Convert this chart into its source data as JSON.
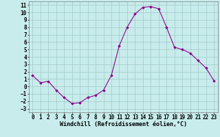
{
  "x": [
    0,
    1,
    2,
    3,
    4,
    5,
    6,
    7,
    8,
    9,
    10,
    11,
    12,
    13,
    14,
    15,
    16,
    17,
    18,
    19,
    20,
    21,
    22,
    23
  ],
  "y": [
    1.5,
    0.5,
    0.7,
    -0.5,
    -1.5,
    -2.3,
    -2.2,
    -1.5,
    -1.2,
    -0.5,
    1.5,
    5.5,
    8.0,
    9.8,
    10.7,
    10.8,
    10.5,
    8.0,
    5.3,
    5.0,
    4.5,
    3.5,
    2.5,
    0.8
  ],
  "line_color": "#8B008B",
  "marker": "D",
  "markersize": 1.8,
  "linewidth": 0.8,
  "bg_color": "#c8ecec",
  "grid_color": "#a0c8c8",
  "xlabel": "Windchill (Refroidissement éolien,°C)",
  "xlabel_fontsize": 6,
  "tick_fontsize": 5.5,
  "ylim": [
    -3.5,
    11.5
  ],
  "xlim": [
    -0.5,
    23.5
  ],
  "yticks": [
    -3,
    -2,
    -1,
    0,
    1,
    2,
    3,
    4,
    5,
    6,
    7,
    8,
    9,
    10,
    11
  ],
  "xticks": [
    0,
    1,
    2,
    3,
    4,
    5,
    6,
    7,
    8,
    9,
    10,
    11,
    12,
    13,
    14,
    15,
    16,
    17,
    18,
    19,
    20,
    21,
    22,
    23
  ]
}
